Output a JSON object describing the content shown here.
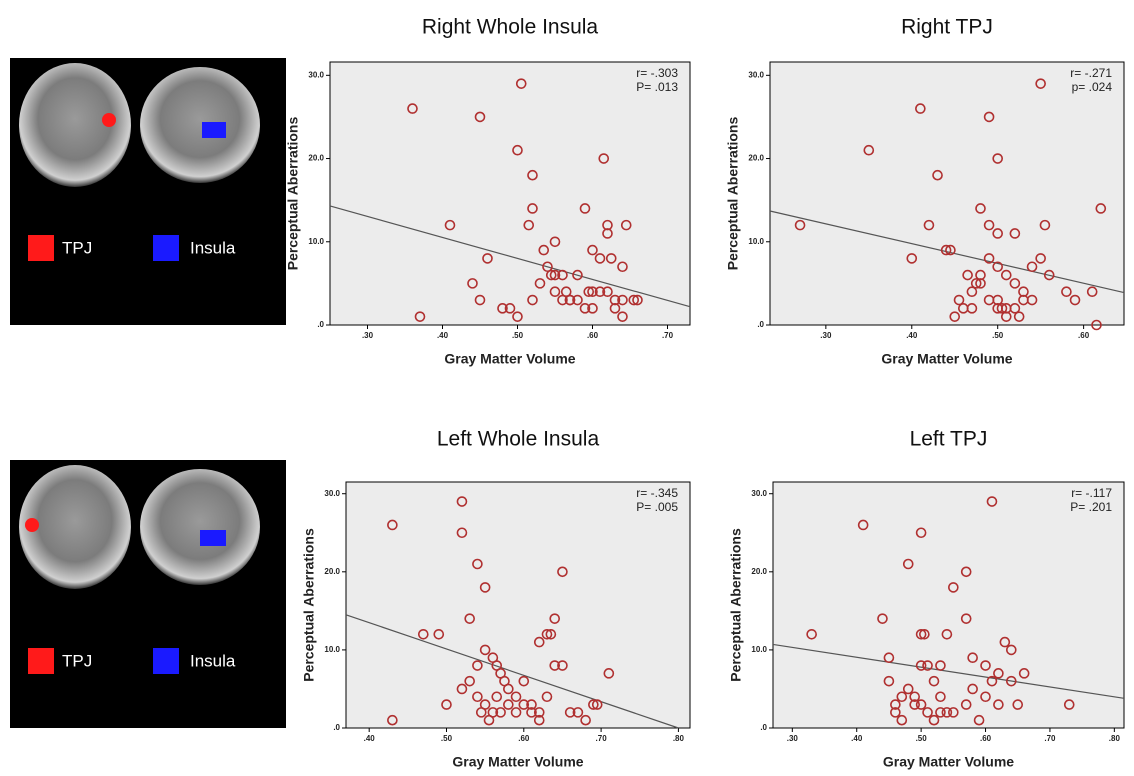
{
  "brain_panels": [
    {
      "labels": [
        "TPJ",
        "Insula"
      ]
    },
    {
      "labels": [
        "TPJ",
        "Insula"
      ]
    }
  ],
  "chart_data": [
    {
      "type": "scatter",
      "title": "Right Whole Insula",
      "x_label": "Gray Matter Volume",
      "y_label": "Perceptual Aberrations",
      "annotations": [
        "r= -.303",
        "P= .013"
      ],
      "color": "#b03030",
      "x": [
        0.36,
        0.45,
        0.505,
        0.5,
        0.52,
        0.41,
        0.46,
        0.44,
        0.45,
        0.37,
        0.615,
        0.59,
        0.62,
        0.645,
        0.52,
        0.515,
        0.55,
        0.62,
        0.625,
        0.6,
        0.61,
        0.64,
        0.655,
        0.535,
        0.54,
        0.545,
        0.55,
        0.56,
        0.565,
        0.57,
        0.58,
        0.59,
        0.6,
        0.62,
        0.63,
        0.64,
        0.66,
        0.48,
        0.49,
        0.5,
        0.52,
        0.53,
        0.55,
        0.56,
        0.57,
        0.61,
        0.63,
        0.64,
        0.6,
        0.58,
        0.595
      ],
      "values": [
        26,
        25,
        29,
        21,
        18,
        12,
        8,
        5,
        3,
        1,
        20,
        14,
        12,
        12,
        14,
        12,
        10,
        11,
        8,
        9,
        8,
        7,
        3,
        9,
        7,
        6,
        6,
        6,
        4,
        3,
        3,
        2,
        2,
        4,
        3,
        3,
        3,
        2,
        2,
        1,
        3,
        5,
        4,
        3,
        3,
        4,
        2,
        1,
        4,
        6,
        4
      ],
      "fit_line": {
        "color": "#555555",
        "x": [
          0.25,
          0.73
        ],
        "y": [
          14.3,
          2.2
        ]
      },
      "xlim": [
        0.25,
        0.73
      ],
      "ylim": [
        0,
        31.6
      ],
      "xticks": [
        {
          "value": 0.3,
          "label": ".30"
        },
        {
          "value": 0.4,
          "label": ".40"
        },
        {
          "value": 0.5,
          "label": ".50"
        },
        {
          "value": 0.6,
          "label": ".60"
        },
        {
          "value": 0.7,
          "label": ".70"
        }
      ],
      "yticks": [
        {
          "value": 0,
          "label": ".0"
        },
        {
          "value": 10,
          "label": "10.0"
        },
        {
          "value": 20,
          "label": "20.0"
        },
        {
          "value": 30,
          "label": "30.0"
        }
      ]
    },
    {
      "type": "scatter",
      "title": "Right TPJ",
      "x_label": "Gray Matter Volume",
      "y_label": "Perceptual Aberrations",
      "annotations": [
        "r= -.271",
        "p= .024"
      ],
      "color": "#b03030",
      "x": [
        0.27,
        0.35,
        0.41,
        0.55,
        0.49,
        0.5,
        0.43,
        0.48,
        0.42,
        0.49,
        0.62,
        0.44,
        0.445,
        0.5,
        0.52,
        0.555,
        0.4,
        0.465,
        0.475,
        0.48,
        0.49,
        0.5,
        0.51,
        0.52,
        0.53,
        0.54,
        0.455,
        0.46,
        0.47,
        0.48,
        0.49,
        0.5,
        0.505,
        0.51,
        0.52,
        0.53,
        0.54,
        0.56,
        0.58,
        0.59,
        0.61,
        0.615,
        0.45,
        0.47,
        0.5,
        0.51,
        0.525,
        0.55
      ],
      "values": [
        12,
        21,
        26,
        29,
        25,
        20,
        18,
        14,
        12,
        12,
        14,
        9,
        9,
        11,
        11,
        12,
        8,
        6,
        5,
        6,
        8,
        7,
        6,
        5,
        4,
        7,
        3,
        2,
        4,
        5,
        3,
        3,
        2,
        1,
        2,
        3,
        3,
        6,
        4,
        3,
        4,
        0,
        1,
        2,
        2,
        2,
        1,
        8
      ],
      "fit_line": {
        "color": "#555555",
        "x": [
          0.235,
          0.647
        ],
        "y": [
          13.7,
          3.9
        ]
      },
      "xlim": [
        0.235,
        0.647
      ],
      "ylim": [
        0,
        31.6
      ],
      "xticks": [
        {
          "value": 0.3,
          "label": ".30"
        },
        {
          "value": 0.4,
          "label": ".40"
        },
        {
          "value": 0.5,
          "label": ".50"
        },
        {
          "value": 0.6,
          "label": ".60"
        }
      ],
      "yticks": [
        {
          "value": 0,
          "label": ".0"
        },
        {
          "value": 10,
          "label": "10.0"
        },
        {
          "value": 20,
          "label": "20.0"
        },
        {
          "value": 30,
          "label": "30.0"
        }
      ]
    },
    {
      "type": "scatter",
      "title": "Left Whole Insula",
      "x_label": "Gray Matter Volume",
      "y_label": "Perceptual Aberrations",
      "annotations": [
        "r= -.345",
        "P= .005"
      ],
      "color": "#b03030",
      "x": [
        0.43,
        0.52,
        0.52,
        0.54,
        0.55,
        0.53,
        0.49,
        0.47,
        0.43,
        0.65,
        0.64,
        0.63,
        0.635,
        0.64,
        0.62,
        0.65,
        0.71,
        0.69,
        0.695,
        0.54,
        0.55,
        0.56,
        0.565,
        0.57,
        0.575,
        0.58,
        0.59,
        0.6,
        0.61,
        0.62,
        0.63,
        0.5,
        0.53,
        0.54,
        0.55,
        0.56,
        0.57,
        0.58,
        0.59,
        0.6,
        0.61,
        0.62,
        0.66,
        0.67,
        0.68,
        0.52,
        0.545,
        0.555,
        0.565
      ],
      "values": [
        26,
        29,
        25,
        21,
        18,
        14,
        12,
        12,
        1,
        20,
        14,
        12,
        12,
        8,
        11,
        8,
        7,
        3,
        3,
        8,
        10,
        9,
        8,
        7,
        6,
        5,
        4,
        6,
        3,
        2,
        4,
        3,
        6,
        4,
        3,
        2,
        2,
        3,
        2,
        3,
        2,
        1,
        2,
        2,
        1,
        5,
        2,
        1,
        4
      ],
      "fit_line": {
        "color": "#555555",
        "x": [
          0.37,
          0.8
        ],
        "y": [
          14.5,
          0
        ]
      },
      "xlim": [
        0.37,
        0.815
      ],
      "ylim": [
        0,
        31.5
      ],
      "xticks": [
        {
          "value": 0.4,
          "label": ".40"
        },
        {
          "value": 0.5,
          "label": ".50"
        },
        {
          "value": 0.6,
          "label": ".60"
        },
        {
          "value": 0.7,
          "label": ".70"
        },
        {
          "value": 0.8,
          "label": ".80"
        }
      ],
      "yticks": [
        {
          "value": 0,
          "label": ".0"
        },
        {
          "value": 10,
          "label": "10.0"
        },
        {
          "value": 20,
          "label": "20.0"
        },
        {
          "value": 30,
          "label": "30.0"
        }
      ]
    },
    {
      "type": "scatter",
      "title": "Left TPJ",
      "x_label": "Gray Matter Volume",
      "y_label": "Perceptual Aberrations",
      "annotations": [
        "r= -.117",
        "P= .201"
      ],
      "color": "#b03030",
      "x": [
        0.33,
        0.41,
        0.5,
        0.61,
        0.48,
        0.57,
        0.55,
        0.57,
        0.5,
        0.505,
        0.54,
        0.44,
        0.63,
        0.45,
        0.51,
        0.58,
        0.64,
        0.66,
        0.73,
        0.53,
        0.5,
        0.52,
        0.48,
        0.47,
        0.46,
        0.45,
        0.49,
        0.5,
        0.53,
        0.55,
        0.58,
        0.6,
        0.61,
        0.62,
        0.64,
        0.65,
        0.46,
        0.47,
        0.49,
        0.51,
        0.52,
        0.53,
        0.54,
        0.57,
        0.59,
        0.6,
        0.62
      ],
      "values": [
        12,
        26,
        25,
        29,
        21,
        20,
        18,
        14,
        12,
        12,
        12,
        14,
        11,
        9,
        8,
        9,
        10,
        7,
        3,
        8,
        8,
        6,
        5,
        4,
        3,
        6,
        4,
        3,
        4,
        2,
        5,
        8,
        6,
        7,
        6,
        3,
        2,
        1,
        3,
        2,
        1,
        2,
        2,
        3,
        1,
        4,
        3
      ],
      "fit_line": {
        "color": "#555555",
        "x": [
          0.27,
          0.815
        ],
        "y": [
          10.7,
          3.8
        ]
      },
      "xlim": [
        0.27,
        0.815
      ],
      "ylim": [
        0,
        31.5
      ],
      "xticks": [
        {
          "value": 0.3,
          "label": ".30"
        },
        {
          "value": 0.4,
          "label": ".40"
        },
        {
          "value": 0.5,
          "label": ".50"
        },
        {
          "value": 0.6,
          "label": ".60"
        },
        {
          "value": 0.7,
          "label": ".70"
        },
        {
          "value": 0.8,
          "label": ".80"
        }
      ],
      "yticks": [
        {
          "value": 0,
          "label": ".0"
        },
        {
          "value": 10,
          "label": "10.0"
        },
        {
          "value": 20,
          "label": "20.0"
        },
        {
          "value": 30,
          "label": "30.0"
        }
      ]
    }
  ]
}
